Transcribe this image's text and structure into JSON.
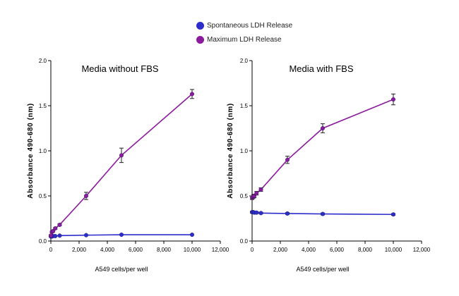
{
  "legend": [
    {
      "label": "Spontaneous LDH Release",
      "color": "#2d2dcc"
    },
    {
      "label": "Maximum LDH Release",
      "color": "#8b1a9c"
    }
  ],
  "chart_data": [
    {
      "type": "line",
      "title": "Media without FBS",
      "xlabel": "A549 cells/per well",
      "ylabel": "Absorbance 490-680 (nm)",
      "xlim": [
        0,
        12000
      ],
      "ylim": [
        0,
        2.0
      ],
      "x_ticks": [
        0,
        2000,
        4000,
        6000,
        8000,
        10000,
        12000
      ],
      "x_tick_labels": [
        "0",
        "2,000",
        "4,000",
        "6,000",
        "8,000",
        "10,000",
        "12,000"
      ],
      "y_ticks": [
        0,
        0.5,
        1.0,
        1.5,
        2.0
      ],
      "y_tick_labels": [
        "0.0",
        "0.5",
        "1.0",
        "1.5",
        "2.0"
      ],
      "x": [
        0,
        78,
        156,
        313,
        625,
        2500,
        5000,
        10000
      ],
      "series": [
        {
          "name": "Spontaneous LDH Release",
          "color": "#2d2dcc",
          "values": [
            0.05,
            0.05,
            0.055,
            0.055,
            0.06,
            0.065,
            0.07,
            0.07
          ],
          "errors": [
            0.005,
            0.005,
            0.005,
            0.005,
            0.005,
            0.005,
            0.005,
            0.005
          ]
        },
        {
          "name": "Maximum LDH Release",
          "color": "#8b1a9c",
          "values": [
            0.06,
            0.1,
            0.11,
            0.14,
            0.18,
            0.5,
            0.95,
            1.63
          ],
          "errors": [
            0.01,
            0.01,
            0.01,
            0.01,
            0.01,
            0.04,
            0.08,
            0.05
          ]
        }
      ]
    },
    {
      "type": "line",
      "title": "Media with FBS",
      "xlabel": "A549 cells/per well",
      "ylabel": "Absorbance 490-680 (nm)",
      "xlim": [
        0,
        12000
      ],
      "ylim": [
        0,
        2.0
      ],
      "x_ticks": [
        0,
        2000,
        4000,
        6000,
        8000,
        10000,
        12000
      ],
      "x_tick_labels": [
        "0",
        "2,000",
        "4,000",
        "6,000",
        "8,000",
        "10,000",
        "12,000"
      ],
      "y_ticks": [
        0,
        0.5,
        1.0,
        1.5,
        2.0
      ],
      "y_tick_labels": [
        "0.0",
        "0.5",
        "1.0",
        "1.5",
        "2.0"
      ],
      "x": [
        0,
        78,
        156,
        313,
        625,
        2500,
        5000,
        10000
      ],
      "series": [
        {
          "name": "Spontaneous LDH Release",
          "color": "#2d2dcc",
          "values": [
            0.32,
            0.32,
            0.315,
            0.315,
            0.31,
            0.305,
            0.3,
            0.295
          ],
          "errors": [
            0.01,
            0.01,
            0.01,
            0.01,
            0.01,
            0.01,
            0.01,
            0.01
          ]
        },
        {
          "name": "Maximum LDH Release",
          "color": "#8b1a9c",
          "values": [
            0.48,
            0.49,
            0.5,
            0.53,
            0.57,
            0.9,
            1.25,
            1.57
          ],
          "errors": [
            0.02,
            0.02,
            0.02,
            0.02,
            0.02,
            0.04,
            0.05,
            0.06
          ]
        }
      ]
    }
  ]
}
